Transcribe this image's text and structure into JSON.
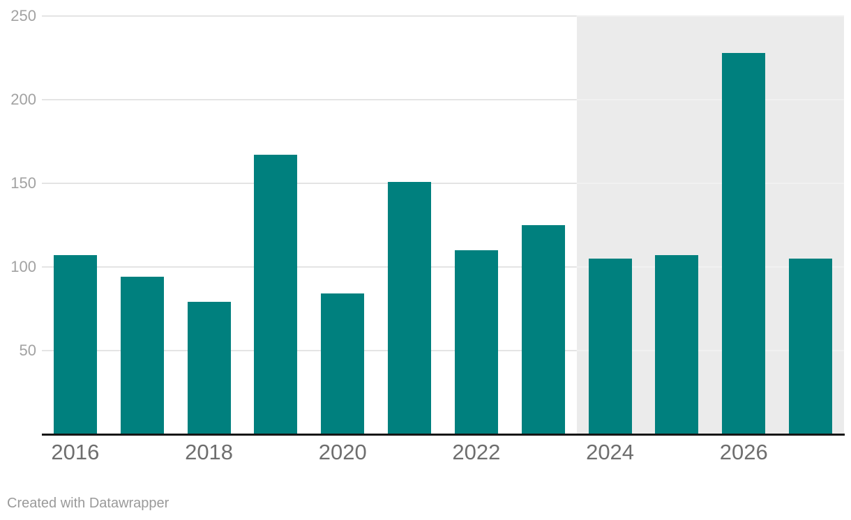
{
  "chart_data": {
    "type": "bar",
    "categories": [
      "2016",
      "2017",
      "2018",
      "2019",
      "2020",
      "2021",
      "2022",
      "2023",
      "2024",
      "2025",
      "2026",
      "2027"
    ],
    "values": [
      107,
      94,
      79,
      167,
      84,
      151,
      110,
      125,
      105,
      107,
      228,
      105
    ],
    "title": "",
    "xlabel": "",
    "ylabel": "",
    "ylim": [
      0,
      250
    ],
    "yticks": [
      50,
      100,
      150,
      200,
      250
    ],
    "x_tick_labels": [
      "2016",
      "2018",
      "2020",
      "2022",
      "2024",
      "2026"
    ],
    "grid": "horizontal",
    "legend_position": "none",
    "bar_color": "#00807e",
    "highlight_region": {
      "from_category": "2024",
      "to_category": "2027",
      "color": "#ebebeb",
      "gridline_color": "#f1f1f1"
    },
    "axis_line_color": "#161616",
    "gridline_color": "#e4e4e4",
    "y_tick_color": "#a2a2a2",
    "x_tick_color": "#6e6e6e"
  },
  "footer": {
    "credit": "Created with Datawrapper"
  }
}
